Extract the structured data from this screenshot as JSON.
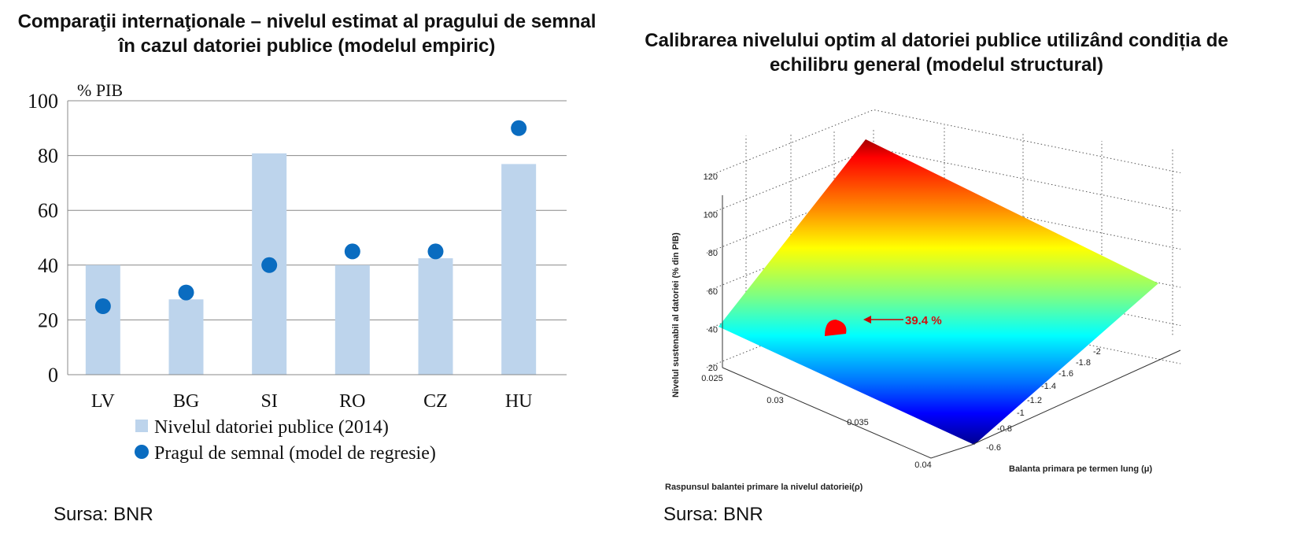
{
  "chart_data": [
    {
      "type": "bar",
      "title": "Comparaţii internaţionale – nivelul estimat al pragului de semnal în cazul datoriei publice (modelul empiric)",
      "ylabel": "% PIB",
      "ylim": [
        0,
        100
      ],
      "yticks": [
        0,
        20,
        40,
        60,
        80,
        100
      ],
      "grid": true,
      "categories": [
        "LV",
        "BG",
        "SI",
        "RO",
        "CZ",
        "HU"
      ],
      "series": [
        {
          "name": "Nivelul datoriei publice (2014)",
          "kind": "bar",
          "color": "#bdd4ec",
          "values": [
            40,
            27.5,
            80.8,
            40,
            42.5,
            76.9
          ]
        },
        {
          "name": "Pragul de semnal (model de regresie)",
          "kind": "scatter",
          "color": "#0a6cc0",
          "values": [
            25,
            30,
            40,
            45,
            45,
            90
          ]
        }
      ],
      "legend": "bottom",
      "source": "Sursa: BNR"
    },
    {
      "type": "surface3d",
      "title": "Calibrarea nivelului optim al datoriei publice utilizând condiția de echilibru general (modelul structural)",
      "zlabel": "Nivelul sustenabil al datoriei (% din PIB)",
      "zticks": [
        "20",
        "40",
        "60",
        "80",
        "100",
        "120"
      ],
      "xlabel": "Raspunsul balantei primare la nivelul datoriei(ρ)",
      "xticks": [
        "0.025",
        "0.03",
        "0.035",
        "0.04"
      ],
      "ylabel": "Balanta primara pe termen lung (μ)",
      "yticks": [
        "-0.6",
        "-0.8",
        "-1",
        "-1.2",
        "-1.4",
        "-1.6",
        "-1.8",
        "-2"
      ],
      "annotation": "39.4 %",
      "source": "Sursa: BNR"
    }
  ]
}
